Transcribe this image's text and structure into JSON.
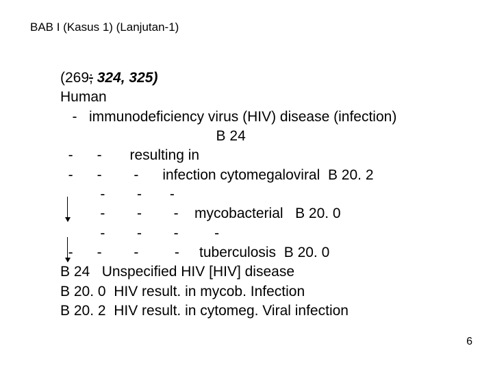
{
  "header": "BAB I (Kasus 1) (Lanjutan-1)",
  "line1": {
    "open": "(269",
    "strike": ";",
    "italic": " 324, 325)"
  },
  "line2": "Human",
  "line3": "   -   immunodeficiency virus (HIV) disease (infection) ",
  "line4": "                                       B 24",
  "line5": "  -      -       resulting in",
  "line6": "  -      -        -      infection cytomegaloviral  B 20. 2",
  "line7": "          -        -       -",
  "line8": "          -        -        -    mycobacterial   B 20. 0",
  "line9": "          -        -        -         -",
  "line10": "  -      -        -         -     tuberculosis  B 20. 0",
  "line11": "B 24   Unspecified HIV [HIV] disease",
  "line12": "B 20. 0  HIV result. in mycob. Infection",
  "line13": "B 20. 2  HIV result. in cytomeg. Viral infection",
  "pageNum": "6"
}
